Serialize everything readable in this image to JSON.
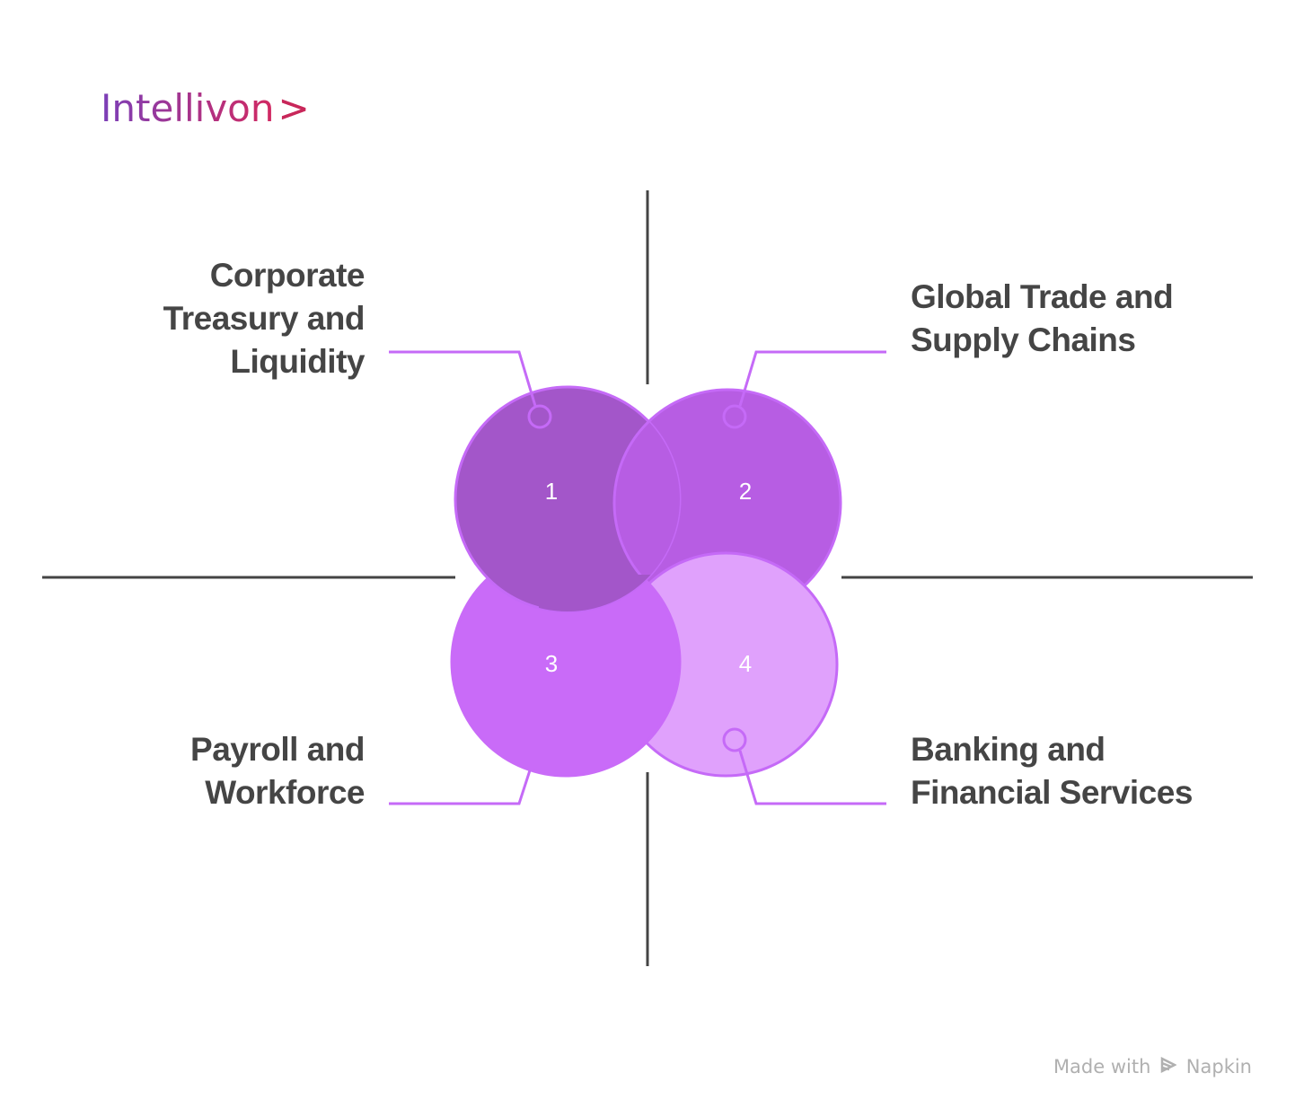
{
  "logo": {
    "text": "Intellivon",
    "chevron": ">"
  },
  "items": [
    {
      "number": "1",
      "label": "Corporate Treasury and Liquidity",
      "lines": [
        "Corporate",
        "Treasury and",
        "Liquidity"
      ],
      "color": "#a356c9"
    },
    {
      "number": "2",
      "label": "Global Trade and Supply Chains",
      "lines": [
        "Global Trade and",
        "Supply Chains"
      ],
      "color": "#b75de3"
    },
    {
      "number": "3",
      "label": "Payroll and Workforce",
      "lines": [
        "Payroll and",
        "Workforce"
      ],
      "color": "#c96bf8"
    },
    {
      "number": "4",
      "label": "Banking and Financial Services",
      "lines": [
        "Banking and",
        "Financial Services"
      ],
      "color": "#e0a1fc"
    }
  ],
  "colors": {
    "stroke": "#c56af7",
    "axis": "#444444",
    "text": "#454545"
  },
  "footer": {
    "made_with": "Made with",
    "brand": "Napkin"
  }
}
